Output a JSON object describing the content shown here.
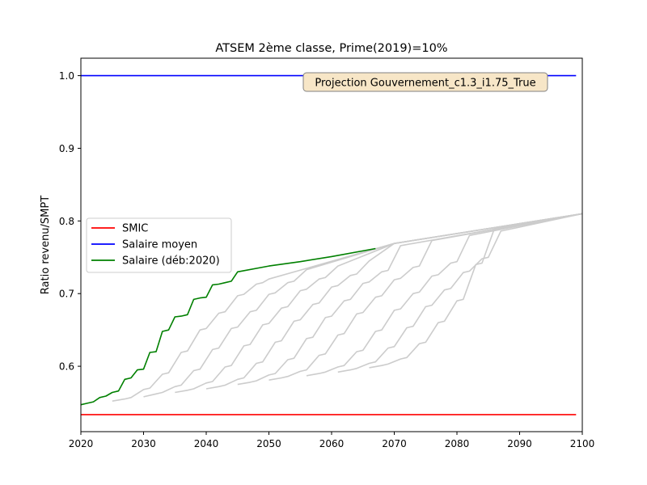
{
  "chart_data": {
    "type": "line",
    "title": "ATSEM 2ème classe, Prime(2019)=10%",
    "xlabel": "",
    "ylabel": "Ratio revenu/SMPT",
    "xlim": [
      2020,
      2100
    ],
    "ylim": [
      0.51,
      1.024
    ],
    "xticks": [
      2020,
      2030,
      2040,
      2050,
      2060,
      2070,
      2080,
      2090,
      2100
    ],
    "yticks": [
      0.6,
      0.7,
      0.8,
      0.9,
      1.0
    ],
    "ytick_labels": [
      "0.6",
      "0.7",
      "0.8",
      "0.9",
      "1.0"
    ],
    "grid": false,
    "legend_position": "center-left",
    "annotation": "Projection Gouvernement_c1.3_i1.75_True",
    "series": [
      {
        "name": "SMIC",
        "color": "#ff0000",
        "x": [
          2020,
          2099
        ],
        "y": [
          0.5335,
          0.5335
        ]
      },
      {
        "name": "Salaire moyen",
        "color": "#0000ff",
        "x": [
          2020,
          2099
        ],
        "y": [
          1.0,
          1.0
        ]
      },
      {
        "name": "Salaire (déb:2020)",
        "color": "#008000",
        "x": [
          2020,
          2021,
          2022,
          2023,
          2024,
          2025,
          2026,
          2027,
          2028,
          2029,
          2030,
          2031,
          2032,
          2033,
          2034,
          2035,
          2036,
          2037,
          2038,
          2039,
          2040,
          2041,
          2042,
          2043,
          2044,
          2045,
          2050,
          2055,
          2060,
          2067
        ],
        "y": [
          0.547,
          0.549,
          0.551,
          0.557,
          0.559,
          0.564,
          0.566,
          0.582,
          0.584,
          0.595,
          0.596,
          0.619,
          0.62,
          0.648,
          0.65,
          0.668,
          0.669,
          0.671,
          0.692,
          0.694,
          0.695,
          0.712,
          0.713,
          0.715,
          0.717,
          0.73,
          0.738,
          0.744,
          0.751,
          0.762
        ]
      }
    ],
    "background_series_color": "#cccccc",
    "background_series": [
      {
        "x": [
          2025,
          2027,
          2028,
          2030,
          2031,
          2033,
          2034,
          2036,
          2037,
          2039,
          2040,
          2042,
          2043,
          2045,
          2046,
          2048,
          2049,
          2050,
          2070,
          2100
        ],
        "y": [
          0.552,
          0.555,
          0.557,
          0.568,
          0.57,
          0.589,
          0.591,
          0.619,
          0.621,
          0.65,
          0.652,
          0.673,
          0.675,
          0.697,
          0.699,
          0.713,
          0.715,
          0.72,
          0.769,
          0.81
        ]
      },
      {
        "x": [
          2030,
          2032,
          2033,
          2035,
          2036,
          2038,
          2039,
          2041,
          2042,
          2044,
          2045,
          2047,
          2048,
          2050,
          2051,
          2053,
          2054,
          2056,
          2070,
          2100
        ],
        "y": [
          0.558,
          0.562,
          0.564,
          0.572,
          0.574,
          0.594,
          0.596,
          0.623,
          0.625,
          0.652,
          0.654,
          0.675,
          0.677,
          0.699,
          0.701,
          0.715,
          0.717,
          0.733,
          0.769,
          0.81
        ]
      },
      {
        "x": [
          2035,
          2037,
          2038,
          2040,
          2041,
          2043,
          2044,
          2046,
          2047,
          2049,
          2050,
          2052,
          2053,
          2055,
          2056,
          2058,
          2059,
          2061,
          2070,
          2100
        ],
        "y": [
          0.564,
          0.567,
          0.569,
          0.577,
          0.579,
          0.599,
          0.601,
          0.628,
          0.63,
          0.657,
          0.659,
          0.68,
          0.682,
          0.704,
          0.706,
          0.72,
          0.722,
          0.738,
          0.769,
          0.81
        ]
      },
      {
        "x": [
          2040,
          2042,
          2043,
          2045,
          2046,
          2048,
          2049,
          2051,
          2052,
          2054,
          2055,
          2057,
          2058,
          2060,
          2061,
          2063,
          2064,
          2066,
          2070,
          2100
        ],
        "y": [
          0.569,
          0.572,
          0.574,
          0.582,
          0.584,
          0.604,
          0.606,
          0.633,
          0.635,
          0.662,
          0.664,
          0.685,
          0.687,
          0.709,
          0.711,
          0.725,
          0.727,
          0.745,
          0.769,
          0.81
        ]
      },
      {
        "x": [
          2045,
          2047,
          2048,
          2050,
          2051,
          2053,
          2054,
          2056,
          2057,
          2059,
          2060,
          2062,
          2063,
          2065,
          2066,
          2068,
          2069,
          2071,
          2100
        ],
        "y": [
          0.575,
          0.578,
          0.58,
          0.588,
          0.59,
          0.609,
          0.611,
          0.638,
          0.64,
          0.667,
          0.669,
          0.69,
          0.692,
          0.714,
          0.716,
          0.73,
          0.732,
          0.766,
          0.81
        ]
      },
      {
        "x": [
          2050,
          2052,
          2053,
          2055,
          2056,
          2058,
          2059,
          2061,
          2062,
          2064,
          2065,
          2067,
          2068,
          2070,
          2071,
          2073,
          2074,
          2076,
          2100
        ],
        "y": [
          0.581,
          0.584,
          0.586,
          0.593,
          0.595,
          0.615,
          0.617,
          0.643,
          0.645,
          0.672,
          0.674,
          0.695,
          0.697,
          0.719,
          0.721,
          0.736,
          0.738,
          0.773,
          0.81
        ]
      },
      {
        "x": [
          2056,
          2058,
          2059,
          2061,
          2062,
          2064,
          2065,
          2067,
          2068,
          2070,
          2071,
          2073,
          2074,
          2076,
          2077,
          2079,
          2080,
          2082,
          2100
        ],
        "y": [
          0.587,
          0.59,
          0.592,
          0.599,
          0.601,
          0.62,
          0.622,
          0.648,
          0.65,
          0.677,
          0.679,
          0.7,
          0.702,
          0.724,
          0.726,
          0.742,
          0.744,
          0.78,
          0.81
        ]
      },
      {
        "x": [
          2061,
          2063,
          2064,
          2066,
          2067,
          2069,
          2070,
          2072,
          2073,
          2075,
          2076,
          2078,
          2079,
          2081,
          2082,
          2084,
          2085,
          2087,
          2100
        ],
        "y": [
          0.592,
          0.595,
          0.597,
          0.604,
          0.606,
          0.625,
          0.627,
          0.653,
          0.655,
          0.682,
          0.684,
          0.705,
          0.707,
          0.729,
          0.731,
          0.748,
          0.75,
          0.786,
          0.81
        ]
      },
      {
        "x": [
          2066,
          2068,
          2069,
          2071,
          2072,
          2074,
          2075,
          2077,
          2078,
          2080,
          2081,
          2083,
          2084,
          2086,
          2100
        ],
        "y": [
          0.598,
          0.601,
          0.603,
          0.61,
          0.612,
          0.631,
          0.633,
          0.66,
          0.662,
          0.69,
          0.692,
          0.74,
          0.742,
          0.79,
          0.81
        ]
      }
    ]
  }
}
